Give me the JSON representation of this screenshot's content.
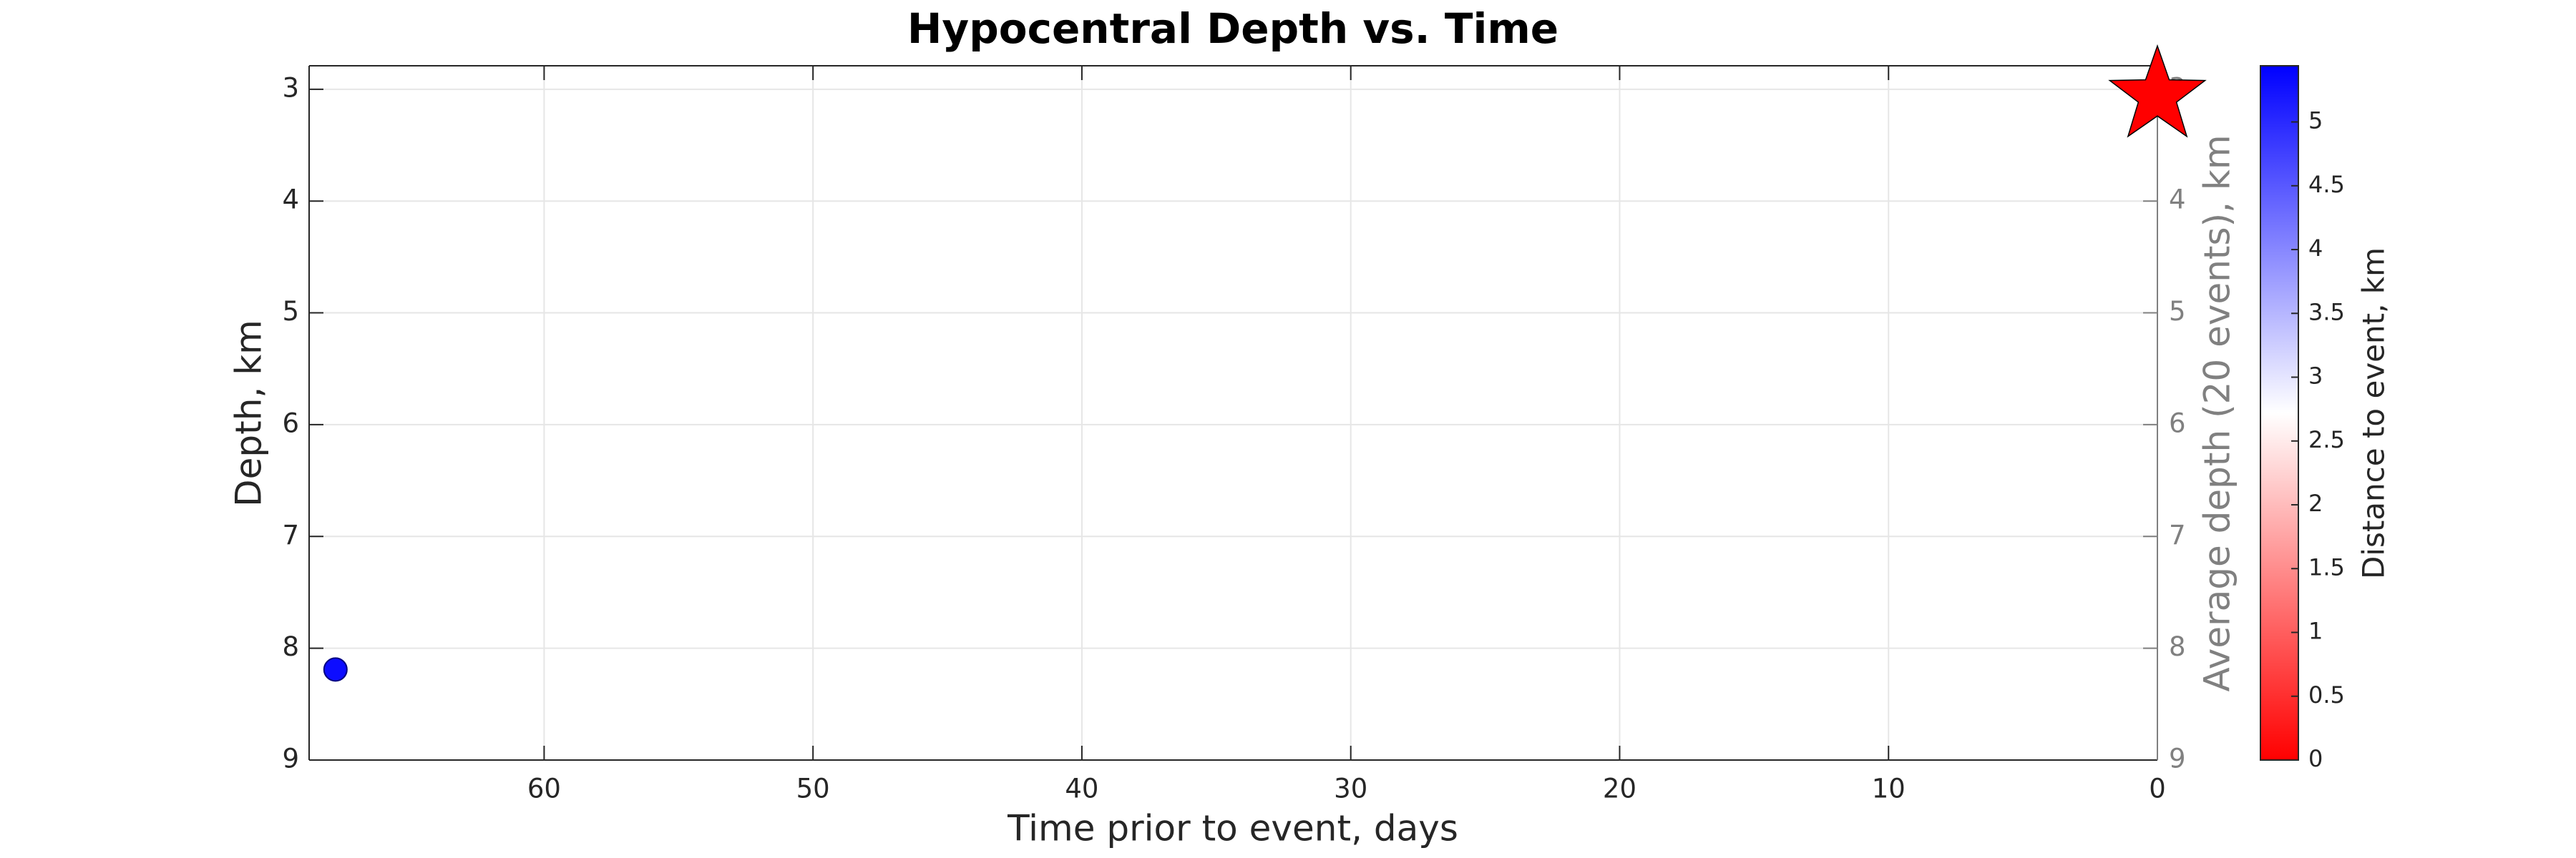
{
  "chart_data": {
    "type": "scatter",
    "title": "Hypocentral Depth vs. Time",
    "xlabel": "Time prior to event, days",
    "ylabel": "Depth, km",
    "y2label": "Average depth (20 events), km",
    "xlim": [
      68.74,
      0
    ],
    "xticks": [
      60,
      50,
      40,
      30,
      20,
      10,
      0
    ],
    "ylim": [
      9,
      2.79
    ],
    "yticks": [
      3,
      4,
      5,
      6,
      7,
      8,
      9
    ],
    "y2lim": [
      9,
      2.79
    ],
    "y2ticks": [
      3,
      4,
      5,
      6,
      7,
      8,
      9
    ],
    "grid": true,
    "series": [
      {
        "color": "#0000ff",
        "x": [
          67.76
        ],
        "values": [
          8.19
        ],
        "color_values": [
          5.3
        ]
      }
    ],
    "mainshock": {
      "x": 0,
      "y": 3.06,
      "color": "#ff0000"
    },
    "colorbar": {
      "label": "Distance to event, km",
      "lim": [
        0,
        5.44
      ],
      "ticks": [
        0,
        0.5,
        1,
        1.5,
        2,
        2.5,
        3,
        3.5,
        4,
        4.5,
        5
      ],
      "colors": [
        "#ff0000",
        "#ffffff",
        "#0000ff"
      ]
    }
  }
}
